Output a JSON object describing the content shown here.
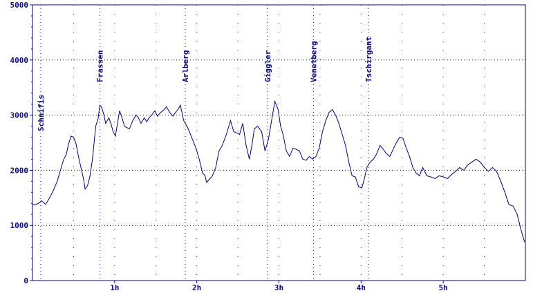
{
  "chart_data": {
    "type": "line",
    "title": "",
    "xlabel": "",
    "ylabel": "",
    "xlim": [
      0,
      6
    ],
    "ylim": [
      0,
      5000
    ],
    "grid": true,
    "line_color": "#000080",
    "grid_color": "#000080",
    "label_color": "#0a0a88",
    "y_ticks": [
      {
        "value": 0,
        "label": "0"
      },
      {
        "value": 1000,
        "label": "1000"
      },
      {
        "value": 2000,
        "label": "2000"
      },
      {
        "value": 3000,
        "label": "3000"
      },
      {
        "value": 4000,
        "label": "4000"
      },
      {
        "value": 5000,
        "label": "5000"
      }
    ],
    "x_ticks": [
      {
        "value": 1,
        "label": "1h"
      },
      {
        "value": 2,
        "label": "2h"
      },
      {
        "value": 3,
        "label": "3h"
      },
      {
        "value": 4,
        "label": "4h"
      },
      {
        "value": 5,
        "label": "5h"
      }
    ],
    "waypoints": [
      {
        "name": "Schnifis",
        "x": 0.1
      },
      {
        "name": "Frassen",
        "x": 0.82
      },
      {
        "name": "Arlberg",
        "x": 1.86
      },
      {
        "name": "Giggler",
        "x": 2.86
      },
      {
        "name": "Venetberg",
        "x": 3.42
      },
      {
        "name": "Tschirgant",
        "x": 4.09
      }
    ],
    "series": [
      {
        "x": [
          0,
          0.03,
          0.06,
          0.09,
          0.11,
          0.13,
          0.16,
          0.2,
          0.25,
          0.3,
          0.35,
          0.38,
          0.41,
          0.44,
          0.47,
          0.5,
          0.53,
          0.56,
          0.59,
          0.62,
          0.64,
          0.67,
          0.7,
          0.73,
          0.75,
          0.77,
          0.8,
          0.82,
          0.84,
          0.87,
          0.89,
          0.91,
          0.93,
          0.96,
          0.98,
          1.01,
          1.04,
          1.06,
          1.09,
          1.12,
          1.14,
          1.18,
          1.22,
          1.26,
          1.29,
          1.32,
          1.36,
          1.39,
          1.42,
          1.45,
          1.49,
          1.52,
          1.56,
          1.59,
          1.63,
          1.67,
          1.71,
          1.74,
          1.77,
          1.8,
          1.84,
          1.88,
          1.91,
          1.95,
          1.99,
          2.03,
          2.07,
          2.1,
          2.12,
          2.15,
          2.19,
          2.23,
          2.27,
          2.31,
          2.36,
          2.41,
          2.45,
          2.48,
          2.52,
          2.56,
          2.6,
          2.64,
          2.67,
          2.7,
          2.74,
          2.79,
          2.83,
          2.87,
          2.91,
          2.95,
          2.99,
          3.02,
          3.05,
          3.09,
          3.13,
          3.17,
          3.21,
          3.25,
          3.29,
          3.33,
          3.37,
          3.41,
          3.45,
          3.49,
          3.53,
          3.57,
          3.61,
          3.65,
          3.69,
          3.73,
          3.77,
          3.81,
          3.85,
          3.89,
          3.93,
          3.97,
          4.01,
          4.04,
          4.07,
          4.11,
          4.15,
          4.19,
          4.23,
          4.27,
          4.31,
          4.35,
          4.39,
          4.43,
          4.47,
          4.51,
          4.55,
          4.59,
          4.63,
          4.67,
          4.71,
          4.75,
          4.8,
          4.85,
          4.9,
          4.95,
          5.0,
          5.05,
          5.1,
          5.15,
          5.2,
          5.25,
          5.3,
          5.35,
          5.4,
          5.45,
          5.5,
          5.55,
          5.6,
          5.65,
          5.7,
          5.75,
          5.8,
          5.85,
          5.9,
          5.95,
          5.99
        ],
        "y": [
          1380,
          1380,
          1390,
          1420,
          1450,
          1420,
          1380,
          1480,
          1620,
          1800,
          2050,
          2200,
          2280,
          2480,
          2620,
          2600,
          2480,
          2250,
          2050,
          1850,
          1660,
          1720,
          1900,
          2200,
          2500,
          2800,
          2950,
          3180,
          3150,
          3000,
          2850,
          2900,
          2950,
          2820,
          2700,
          2620,
          2900,
          3080,
          2950,
          2800,
          2780,
          2750,
          2900,
          3000,
          2950,
          2850,
          2950,
          2880,
          2950,
          3000,
          3080,
          2980,
          3050,
          3080,
          3150,
          3050,
          2980,
          3050,
          3100,
          3180,
          2900,
          2800,
          2700,
          2550,
          2400,
          2200,
          1950,
          1900,
          1780,
          1830,
          1900,
          2050,
          2350,
          2450,
          2650,
          2900,
          2700,
          2680,
          2650,
          2850,
          2450,
          2200,
          2450,
          2750,
          2800,
          2700,
          2350,
          2550,
          2900,
          3250,
          3100,
          2800,
          2650,
          2350,
          2250,
          2400,
          2380,
          2350,
          2200,
          2180,
          2250,
          2200,
          2250,
          2400,
          2700,
          2900,
          3050,
          3100,
          3000,
          2850,
          2650,
          2450,
          2150,
          1900,
          1880,
          1700,
          1680,
          1850,
          2050,
          2150,
          2200,
          2300,
          2450,
          2380,
          2300,
          2250,
          2380,
          2500,
          2600,
          2580,
          2400,
          2250,
          2050,
          1950,
          1900,
          2050,
          1900,
          1880,
          1850,
          1900,
          1880,
          1850,
          1920,
          1980,
          2050,
          2000,
          2100,
          2150,
          2200,
          2150,
          2050,
          1980,
          2050,
          1980,
          1800,
          1600,
          1380,
          1350,
          1200,
          900,
          700
        ]
      }
    ]
  }
}
